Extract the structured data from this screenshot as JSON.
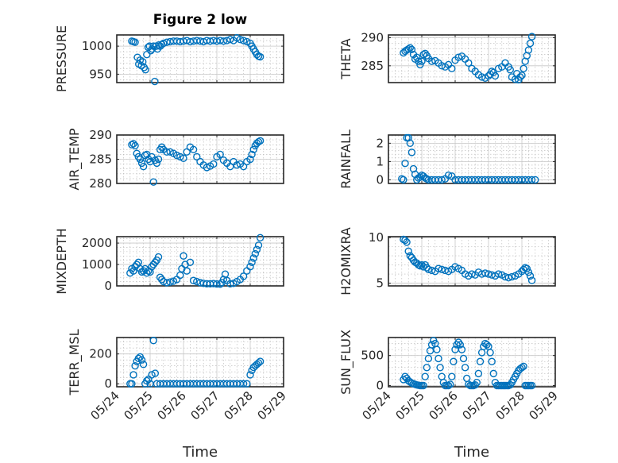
{
  "figure": {
    "title": "Figure 2 low",
    "xlabel": "Time",
    "marker_color": "#0072BD"
  },
  "chart_data": [
    {
      "type": "scatter",
      "ylabel": "PRESSURE",
      "ylim": [
        935,
        1020
      ],
      "yticks": [
        {
          "value": 950,
          "label": "950"
        },
        {
          "value": 1000,
          "label": "1000"
        }
      ],
      "xticks": [
        {
          "value": 0,
          "label": "05/24"
        },
        {
          "value": 1,
          "label": "05/25"
        },
        {
          "value": 2,
          "label": "05/26"
        },
        {
          "value": 3,
          "label": "05/27"
        },
        {
          "value": 4,
          "label": "05/28"
        },
        {
          "value": 5,
          "label": "05/29"
        }
      ],
      "show_xticklabels": false,
      "grid": true,
      "x": [
        0.45,
        0.5,
        0.55,
        0.62,
        0.66,
        0.7,
        0.74,
        0.78,
        0.82,
        0.86,
        0.9,
        0.94,
        0.98,
        1.02,
        1.06,
        1.1,
        1.14,
        1.18,
        1.22,
        1.26,
        1.3,
        1.35,
        1.4,
        1.5,
        1.6,
        1.7,
        1.8,
        1.9,
        2.0,
        2.1,
        2.2,
        2.3,
        2.4,
        2.5,
        2.6,
        2.7,
        2.8,
        2.9,
        3.0,
        3.1,
        3.2,
        3.3,
        3.4,
        3.5,
        3.6,
        3.7,
        3.8,
        3.9,
        4.0,
        4.05,
        4.1,
        4.15,
        4.2,
        4.25,
        4.3
      ],
      "y": [
        1009,
        1008,
        1007,
        980,
        968,
        975,
        965,
        972,
        962,
        958,
        985,
        998,
        1000,
        992,
        995,
        1000,
        937,
        1000,
        995,
        1002,
        1000,
        1003,
        1005,
        1007,
        1008,
        1009,
        1009,
        1008,
        1009,
        1010,
        1008,
        1009,
        1010,
        1009,
        1008,
        1010,
        1009,
        1010,
        1009,
        1010,
        1009,
        1010,
        1012,
        1010,
        1015,
        1012,
        1010,
        1008,
        1005,
        1000,
        995,
        990,
        985,
        982,
        981
      ]
    },
    {
      "type": "scatter",
      "ylabel": "THETA",
      "ylim": [
        282,
        290.5
      ],
      "yticks": [
        {
          "value": 285,
          "label": "285"
        },
        {
          "value": 290,
          "label": "290"
        }
      ],
      "xticks": [
        {
          "value": 0,
          "label": "05/24"
        },
        {
          "value": 1,
          "label": "05/25"
        },
        {
          "value": 2,
          "label": "05/26"
        },
        {
          "value": 3,
          "label": "05/27"
        },
        {
          "value": 4,
          "label": "05/28"
        },
        {
          "value": 5,
          "label": "05/29"
        }
      ],
      "show_xticklabels": false,
      "grid": true,
      "x": [
        0.45,
        0.5,
        0.55,
        0.6,
        0.65,
        0.7,
        0.75,
        0.8,
        0.85,
        0.9,
        0.95,
        1.0,
        1.05,
        1.1,
        1.15,
        1.2,
        1.3,
        1.4,
        1.5,
        1.6,
        1.7,
        1.8,
        1.9,
        2.0,
        2.1,
        2.2,
        2.3,
        2.4,
        2.5,
        2.6,
        2.7,
        2.8,
        2.9,
        3.0,
        3.05,
        3.1,
        3.15,
        3.2,
        3.3,
        3.4,
        3.5,
        3.6,
        3.65,
        3.7,
        3.8,
        3.85,
        3.9,
        3.95,
        4.0,
        4.05,
        4.1,
        4.15,
        4.2,
        4.25,
        4.3
      ],
      "y": [
        287.3,
        287.6,
        287.8,
        288.0,
        288.2,
        287.9,
        287.0,
        286.2,
        286.5,
        285.8,
        285.2,
        285.8,
        287.0,
        287.2,
        286.8,
        286.3,
        285.8,
        285.9,
        285.5,
        285.0,
        284.8,
        285.2,
        284.5,
        286.0,
        286.5,
        286.7,
        286.2,
        285.5,
        284.5,
        284.0,
        283.4,
        283.0,
        282.8,
        283.2,
        283.5,
        284.0,
        283.8,
        283.2,
        284.5,
        284.8,
        285.5,
        284.8,
        284.3,
        283.0,
        282.6,
        283.6,
        282.5,
        283.0,
        283.3,
        284.5,
        285.8,
        286.8,
        287.8,
        289.0,
        290.2
      ]
    },
    {
      "type": "scatter",
      "ylabel": "AIR_TEMP",
      "ylim": [
        280,
        290
      ],
      "yticks": [
        {
          "value": 280,
          "label": "280"
        },
        {
          "value": 285,
          "label": "285"
        },
        {
          "value": 290,
          "label": "290"
        }
      ],
      "xticks": [
        {
          "value": 0,
          "label": "05/24"
        },
        {
          "value": 1,
          "label": "05/25"
        },
        {
          "value": 2,
          "label": "05/26"
        },
        {
          "value": 3,
          "label": "05/27"
        },
        {
          "value": 4,
          "label": "05/28"
        },
        {
          "value": 5,
          "label": "05/29"
        }
      ],
      "show_xticklabels": false,
      "grid": true,
      "x": [
        0.45,
        0.5,
        0.55,
        0.6,
        0.65,
        0.7,
        0.75,
        0.8,
        0.85,
        0.9,
        0.95,
        1.0,
        1.05,
        1.1,
        1.15,
        1.2,
        1.25,
        1.3,
        1.35,
        1.4,
        1.5,
        1.6,
        1.7,
        1.8,
        1.9,
        2.0,
        2.1,
        2.2,
        2.3,
        2.4,
        2.5,
        2.6,
        2.7,
        2.8,
        2.9,
        3.0,
        3.1,
        3.2,
        3.3,
        3.4,
        3.5,
        3.6,
        3.7,
        3.8,
        3.9,
        4.0,
        4.05,
        4.1,
        4.15,
        4.2,
        4.25,
        4.3
      ],
      "y": [
        288.0,
        288.2,
        287.8,
        286.2,
        285.5,
        285.0,
        284.2,
        283.5,
        285.8,
        286.0,
        285.0,
        284.5,
        285.5,
        280.3,
        284.8,
        284.2,
        285.0,
        287.0,
        287.5,
        287.0,
        286.5,
        286.5,
        286.2,
        285.8,
        285.5,
        285.2,
        286.5,
        287.5,
        287.0,
        285.5,
        284.5,
        283.8,
        283.3,
        283.6,
        284.0,
        285.5,
        286.0,
        284.8,
        284.2,
        283.5,
        284.5,
        283.8,
        284.0,
        283.5,
        284.5,
        285.0,
        286.0,
        287.0,
        287.8,
        288.3,
        288.6,
        288.8
      ]
    },
    {
      "type": "scatter",
      "ylabel": "RAINFALL",
      "ylim": [
        -0.2,
        2.45
      ],
      "yticks": [
        {
          "value": 0,
          "label": "0"
        },
        {
          "value": 1,
          "label": "1"
        },
        {
          "value": 2,
          "label": "2"
        }
      ],
      "xticks": [
        {
          "value": 0,
          "label": "05/24"
        },
        {
          "value": 1,
          "label": "05/25"
        },
        {
          "value": 2,
          "label": "05/26"
        },
        {
          "value": 3,
          "label": "05/27"
        },
        {
          "value": 4,
          "label": "05/28"
        },
        {
          "value": 5,
          "label": "05/29"
        }
      ],
      "show_xticklabels": false,
      "grid": true,
      "x": [
        0.4,
        0.45,
        0.5,
        0.55,
        0.6,
        0.65,
        0.7,
        0.75,
        0.8,
        0.85,
        0.9,
        0.95,
        1.0,
        1.05,
        1.1,
        1.15,
        1.2,
        1.3,
        1.4,
        1.5,
        1.6,
        1.7,
        1.8,
        1.9,
        2.0,
        2.1,
        2.2,
        2.3,
        2.4,
        2.5,
        2.6,
        2.7,
        2.8,
        2.9,
        3.0,
        3.1,
        3.2,
        3.3,
        3.4,
        3.5,
        3.6,
        3.7,
        3.8,
        3.9,
        4.0,
        4.1,
        4.2,
        4.3,
        4.4
      ],
      "y": [
        0.05,
        0.0,
        0.9,
        2.3,
        2.3,
        2.0,
        1.5,
        0.6,
        0.3,
        0.0,
        0.1,
        0.15,
        0.25,
        0.2,
        0.1,
        0.05,
        0.0,
        0.0,
        0.0,
        0.0,
        0.0,
        0.05,
        0.25,
        0.2,
        0.0,
        0.0,
        0.0,
        0.0,
        0.0,
        0.0,
        0.0,
        0.0,
        0.0,
        0.0,
        0.0,
        0.0,
        0.0,
        0.0,
        0.0,
        0.0,
        0.0,
        0.0,
        0.0,
        0.0,
        0.0,
        0.0,
        0.0,
        0.0,
        0.0
      ]
    },
    {
      "type": "scatter",
      "ylabel": "MIXDEPTH",
      "ylim": [
        0,
        2300
      ],
      "yticks": [
        {
          "value": 0,
          "label": "0"
        },
        {
          "value": 1000,
          "label": "1000"
        },
        {
          "value": 2000,
          "label": "2000"
        }
      ],
      "xticks": [
        {
          "value": 0,
          "label": "05/24"
        },
        {
          "value": 1,
          "label": "05/25"
        },
        {
          "value": 2,
          "label": "05/26"
        },
        {
          "value": 3,
          "label": "05/27"
        },
        {
          "value": 4,
          "label": "05/28"
        },
        {
          "value": 5,
          "label": "05/29"
        }
      ],
      "show_xticklabels": false,
      "grid": true,
      "x": [
        0.4,
        0.45,
        0.5,
        0.55,
        0.6,
        0.65,
        0.7,
        0.75,
        0.8,
        0.85,
        0.9,
        0.95,
        1.0,
        1.05,
        1.1,
        1.15,
        1.2,
        1.25,
        1.3,
        1.35,
        1.4,
        1.5,
        1.6,
        1.7,
        1.8,
        1.9,
        1.95,
        2.0,
        2.05,
        2.1,
        2.2,
        2.3,
        2.4,
        2.5,
        2.6,
        2.7,
        2.8,
        2.9,
        3.0,
        3.1,
        3.15,
        3.2,
        3.25,
        3.3,
        3.4,
        3.5,
        3.6,
        3.7,
        3.8,
        3.9,
        4.0,
        4.05,
        4.1,
        4.15,
        4.2,
        4.25,
        4.3
      ],
      "y": [
        600,
        800,
        700,
        900,
        1000,
        1100,
        800,
        650,
        700,
        800,
        600,
        700,
        650,
        900,
        1000,
        1100,
        1200,
        1350,
        400,
        300,
        200,
        150,
        180,
        220,
        300,
        500,
        800,
        1400,
        1000,
        700,
        1100,
        250,
        200,
        150,
        120,
        100,
        100,
        110,
        90,
        80,
        150,
        300,
        550,
        250,
        100,
        120,
        200,
        300,
        450,
        700,
        900,
        1100,
        1300,
        1500,
        1700,
        1900,
        2250
      ]
    },
    {
      "type": "scatter",
      "ylabel": "H2OMIXRA",
      "ylim": [
        4.7,
        10.1
      ],
      "yticks": [
        {
          "value": 5,
          "label": "5"
        },
        {
          "value": 10,
          "label": "10"
        }
      ],
      "xticks": [
        {
          "value": 0,
          "label": "05/24"
        },
        {
          "value": 1,
          "label": "05/25"
        },
        {
          "value": 2,
          "label": "05/26"
        },
        {
          "value": 3,
          "label": "05/27"
        },
        {
          "value": 4,
          "label": "05/28"
        },
        {
          "value": 5,
          "label": "05/29"
        }
      ],
      "show_xticklabels": false,
      "grid": true,
      "x": [
        0.45,
        0.5,
        0.55,
        0.6,
        0.65,
        0.7,
        0.75,
        0.8,
        0.85,
        0.9,
        0.95,
        1.0,
        1.05,
        1.1,
        1.15,
        1.2,
        1.3,
        1.4,
        1.5,
        1.6,
        1.7,
        1.8,
        1.9,
        2.0,
        2.1,
        2.2,
        2.3,
        2.4,
        2.5,
        2.6,
        2.7,
        2.8,
        2.9,
        3.0,
        3.1,
        3.2,
        3.3,
        3.4,
        3.5,
        3.6,
        3.7,
        3.8,
        3.9,
        4.0,
        4.05,
        4.1,
        4.15,
        4.2,
        4.25,
        4.3
      ],
      "y": [
        9.8,
        9.7,
        9.5,
        8.5,
        8.0,
        7.8,
        7.5,
        7.3,
        7.2,
        7.0,
        6.9,
        7.0,
        6.8,
        7.0,
        6.7,
        6.5,
        6.4,
        6.3,
        6.6,
        6.5,
        6.4,
        6.3,
        6.5,
        6.8,
        6.6,
        6.4,
        6.0,
        5.8,
        6.0,
        5.9,
        6.2,
        6.0,
        6.1,
        6.0,
        5.9,
        5.8,
        6.0,
        5.9,
        5.7,
        5.6,
        5.7,
        5.8,
        6.0,
        6.3,
        6.5,
        6.7,
        6.6,
        6.2,
        5.8,
        5.3
      ]
    },
    {
      "type": "scatter",
      "ylabel": "TERR_MSL",
      "ylim": [
        -20,
        310
      ],
      "yticks": [
        {
          "value": 0,
          "label": "0"
        },
        {
          "value": 200,
          "label": "200"
        }
      ],
      "xticks": [
        {
          "value": 0,
          "label": "05/24"
        },
        {
          "value": 1,
          "label": "05/25"
        },
        {
          "value": 2,
          "label": "05/26"
        },
        {
          "value": 3,
          "label": "05/27"
        },
        {
          "value": 4,
          "label": "05/28"
        },
        {
          "value": 5,
          "label": "05/29"
        }
      ],
      "show_xticklabels": true,
      "grid": true,
      "x": [
        0.4,
        0.45,
        0.5,
        0.55,
        0.6,
        0.65,
        0.7,
        0.75,
        0.8,
        0.85,
        0.9,
        0.95,
        1.0,
        1.05,
        1.1,
        1.15,
        1.2,
        1.3,
        1.4,
        1.5,
        1.6,
        1.7,
        1.8,
        1.9,
        2.0,
        2.1,
        2.2,
        2.3,
        2.4,
        2.5,
        2.6,
        2.7,
        2.8,
        2.9,
        3.0,
        3.1,
        3.2,
        3.3,
        3.4,
        3.5,
        3.6,
        3.7,
        3.8,
        3.9,
        4.0,
        4.05,
        4.1,
        4.15,
        4.2,
        4.25,
        4.3
      ],
      "y": [
        0,
        0,
        60,
        120,
        150,
        170,
        180,
        160,
        130,
        0,
        20,
        30,
        0,
        60,
        290,
        70,
        0,
        0,
        0,
        0,
        0,
        0,
        0,
        0,
        0,
        0,
        0,
        0,
        0,
        0,
        0,
        0,
        0,
        0,
        0,
        0,
        0,
        0,
        0,
        0,
        0,
        0,
        0,
        0,
        60,
        90,
        110,
        120,
        130,
        140,
        150
      ]
    },
    {
      "type": "scatter",
      "ylabel": "SUN_FLUX",
      "ylim": [
        -20,
        800
      ],
      "yticks": [
        {
          "value": 0,
          "label": "0"
        },
        {
          "value": 500,
          "label": "500"
        }
      ],
      "xticks": [
        {
          "value": 0,
          "label": "05/24"
        },
        {
          "value": 1,
          "label": "05/25"
        },
        {
          "value": 2,
          "label": "05/26"
        },
        {
          "value": 3,
          "label": "05/27"
        },
        {
          "value": 4,
          "label": "05/28"
        },
        {
          "value": 5,
          "label": "05/29"
        }
      ],
      "show_xticklabels": true,
      "grid": true,
      "x": [
        0.45,
        0.5,
        0.55,
        0.6,
        0.65,
        0.7,
        0.75,
        0.8,
        0.85,
        0.9,
        0.95,
        1.0,
        1.05,
        1.1,
        1.15,
        1.2,
        1.25,
        1.3,
        1.35,
        1.4,
        1.45,
        1.5,
        1.55,
        1.6,
        1.65,
        1.7,
        1.75,
        1.8,
        1.85,
        1.9,
        1.95,
        2.0,
        2.05,
        2.1,
        2.15,
        2.2,
        2.25,
        2.3,
        2.35,
        2.4,
        2.45,
        2.5,
        2.55,
        2.6,
        2.65,
        2.7,
        2.75,
        2.8,
        2.85,
        2.9,
        2.95,
        3.0,
        3.05,
        3.1,
        3.15,
        3.2,
        3.25,
        3.3,
        3.35,
        3.4,
        3.45,
        3.5,
        3.55,
        3.6,
        3.65,
        3.7,
        3.75,
        3.8,
        3.85,
        3.9,
        3.95,
        4.0,
        4.05,
        4.1,
        4.15,
        4.2,
        4.25,
        4.3
      ],
      "y": [
        100,
        150,
        120,
        80,
        60,
        40,
        30,
        20,
        10,
        5,
        0,
        0,
        0,
        150,
        300,
        450,
        580,
        680,
        750,
        700,
        600,
        450,
        300,
        150,
        50,
        0,
        0,
        0,
        20,
        150,
        400,
        600,
        680,
        720,
        680,
        600,
        450,
        300,
        120,
        20,
        0,
        0,
        0,
        10,
        50,
        200,
        400,
        550,
        650,
        700,
        680,
        650,
        550,
        400,
        200,
        50,
        0,
        0,
        0,
        0,
        0,
        0,
        0,
        0,
        10,
        50,
        100,
        150,
        200,
        250,
        280,
        300,
        320,
        0,
        0,
        0,
        0,
        0
      ]
    }
  ]
}
